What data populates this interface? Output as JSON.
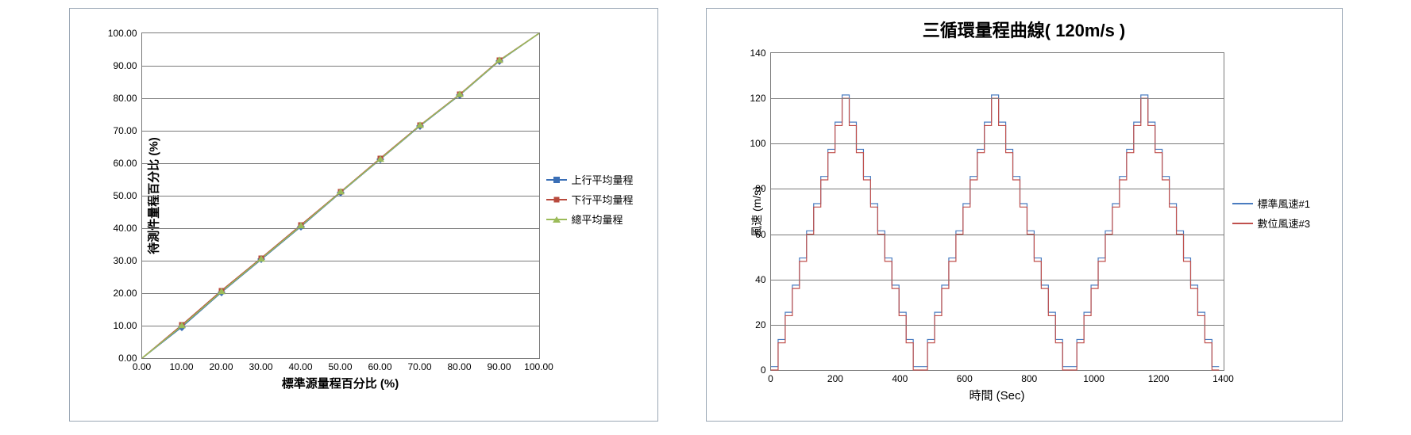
{
  "left_chart": {
    "type": "line-scatter",
    "x_label": "標準源量程百分比 (%)",
    "y_label": "待測件量程百分比 (%)",
    "xlim": [
      0,
      100
    ],
    "ylim": [
      0,
      100
    ],
    "xtick_step": 10,
    "ytick_step": 10,
    "xick_decimals": 2,
    "tick_fontsize": 12,
    "label_fontsize": 15,
    "grid_color": "#7a7a7a",
    "plot_border_color": "#7a7a7a",
    "background_color": "#ffffff",
    "series": [
      {
        "name": "上行平均量程",
        "color": "#3b6fb6",
        "marker": "diamond",
        "line_width": 1.5,
        "x": [
          0,
          10,
          20,
          30,
          40,
          50,
          60,
          70,
          80,
          90,
          100
        ],
        "y": [
          0,
          9.6,
          20.3,
          30.4,
          40.5,
          51.0,
          61.2,
          71.5,
          81.0,
          91.5,
          100
        ]
      },
      {
        "name": "下行平均量程",
        "color": "#b84a3d",
        "marker": "square",
        "line_width": 1.5,
        "x": [
          0,
          10,
          20,
          30,
          40,
          50,
          60,
          70,
          80,
          90,
          100
        ],
        "y": [
          0,
          10.2,
          20.8,
          30.8,
          41.0,
          51.2,
          61.5,
          71.7,
          81.2,
          91.7,
          100
        ]
      },
      {
        "name": "總平均量程",
        "color": "#9bbb59",
        "marker": "triangle",
        "line_width": 1.5,
        "x": [
          0,
          10,
          20,
          30,
          40,
          50,
          60,
          70,
          80,
          90,
          100
        ],
        "y": [
          0,
          9.9,
          20.5,
          30.6,
          40.7,
          51.1,
          61.3,
          71.6,
          81.1,
          91.6,
          100
        ]
      }
    ],
    "legend_position": "right"
  },
  "right_chart": {
    "type": "line",
    "title": "三循環量程曲線( 120m/s )",
    "title_fontsize": 22,
    "x_label": "時間 (Sec)",
    "y_label": "風速 (m/s)",
    "xlim": [
      0,
      1400
    ],
    "ylim": [
      0,
      140
    ],
    "xtick_step": 200,
    "ytick_step": 20,
    "tick_fontsize": 12,
    "label_fontsize": 14,
    "grid_color": "#7a7a7a",
    "plot_border_color": "#7a7a7a",
    "background_color": "#ffffff",
    "staircase": {
      "period_sec": 490,
      "levels_up": [
        0,
        12,
        24,
        36,
        48,
        60,
        72,
        84,
        96,
        108,
        120
      ],
      "dwell_sec": 22,
      "cycles": 3
    },
    "series": [
      {
        "name": "標準風速#1",
        "color": "#4a7cc0",
        "line_width": 1.2,
        "offset": 1.5
      },
      {
        "name": "數位風速#3",
        "color": "#c0504d",
        "line_width": 1.2,
        "offset": 0
      }
    ],
    "legend_position": "right"
  }
}
